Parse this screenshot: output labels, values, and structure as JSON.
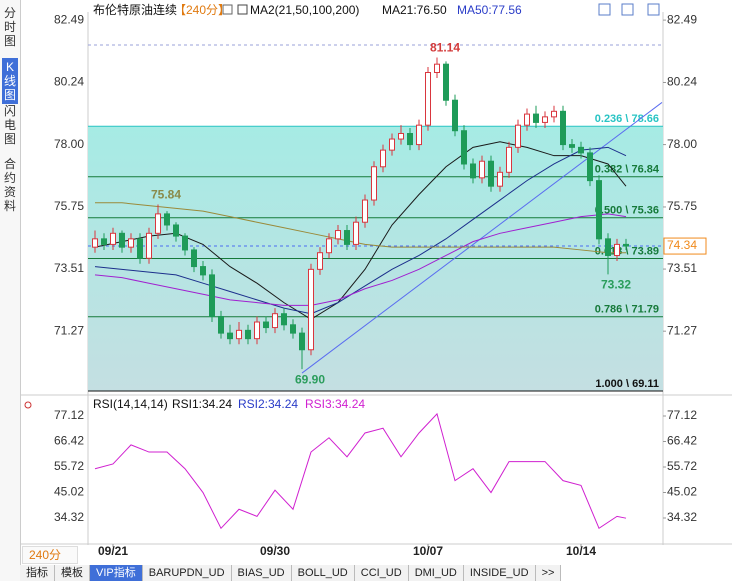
{
  "ui": {
    "sidebar_tabs": [
      "分时图",
      "K线图",
      "闪电图",
      "合约资料"
    ],
    "period_selector": "240分",
    "bottom_tabs": [
      "指标",
      "模板",
      "VIP指标",
      "BARUPDN_UD",
      "BIAS_UD",
      "BOLL_UD",
      "CCI_UD",
      "DMI_UD",
      "INSIDE_UD",
      ">>"
    ],
    "header": {
      "title": "布伦特原油连续",
      "period": "【240分】",
      "indicator": "MA2(21,50,100,200)",
      "ma21": "MA21:76.50",
      "ma50": "MA50:77.56"
    },
    "rsi_header": {
      "name": "RSI(14,14,14)",
      "rsi1": "RSI1:34.24",
      "rsi2": "RSI2:34.24",
      "rsi3": "RSI3:34.24"
    }
  },
  "chart_data": [
    {
      "type": "candlestick",
      "categories": [
        null,
        null,
        "09/21",
        null,
        null,
        null,
        null,
        null,
        null,
        null,
        null,
        null,
        null,
        null,
        null,
        null,
        null,
        null,
        null,
        null,
        "09/30",
        null,
        null,
        null,
        null,
        null,
        null,
        null,
        null,
        null,
        null,
        null,
        null,
        null,
        null,
        null,
        null,
        "10/07",
        null,
        null,
        null,
        null,
        null,
        null,
        null,
        null,
        null,
        null,
        null,
        null,
        null,
        null,
        null,
        null,
        "10/14",
        null,
        null,
        null,
        null,
        null
      ],
      "open": [
        74.3,
        74.6,
        74.4,
        74.8,
        74.3,
        74.6,
        73.9,
        74.8,
        75.5,
        75.1,
        74.7,
        74.2,
        73.6,
        73.3,
        71.8,
        71.2,
        71.0,
        71.3,
        71.0,
        71.6,
        71.4,
        71.9,
        71.5,
        71.2,
        70.6,
        73.5,
        74.1,
        74.6,
        74.9,
        74.4,
        75.2,
        76.0,
        77.2,
        77.8,
        78.2,
        78.4,
        78.0,
        78.7,
        80.6,
        80.9,
        79.6,
        78.5,
        77.3,
        76.8,
        77.4,
        76.5,
        77.0,
        77.9,
        78.7,
        79.1,
        78.8,
        79.0,
        79.2,
        78.0,
        77.9,
        77.7,
        76.7,
        74.6,
        74.0,
        74.4
      ],
      "high": [
        74.9,
        74.8,
        75.0,
        74.9,
        74.8,
        74.8,
        75.0,
        75.84,
        75.6,
        75.2,
        74.8,
        74.3,
        73.8,
        73.5,
        72.0,
        71.5,
        71.6,
        71.5,
        71.8,
        71.8,
        72.1,
        72.1,
        71.7,
        71.4,
        73.7,
        74.3,
        74.8,
        75.1,
        75.1,
        75.4,
        76.2,
        77.4,
        78.0,
        78.4,
        78.7,
        78.6,
        78.9,
        80.8,
        81.14,
        81.0,
        79.8,
        78.7,
        77.5,
        77.6,
        77.6,
        77.2,
        78.1,
        78.9,
        79.3,
        79.4,
        79.2,
        79.4,
        79.4,
        78.2,
        78.1,
        77.9,
        76.9,
        74.8,
        74.6,
        74.6
      ],
      "low": [
        74.1,
        74.2,
        74.2,
        74.1,
        74.1,
        73.7,
        73.7,
        74.6,
        74.9,
        74.5,
        74.0,
        73.4,
        73.1,
        71.6,
        71.0,
        70.8,
        70.8,
        70.8,
        70.8,
        71.2,
        71.2,
        71.3,
        71.0,
        69.9,
        70.4,
        73.3,
        73.9,
        74.4,
        74.2,
        74.2,
        75.0,
        75.8,
        77.0,
        77.6,
        78.0,
        77.8,
        77.8,
        78.5,
        80.4,
        79.4,
        78.3,
        77.1,
        76.6,
        76.6,
        76.3,
        76.3,
        76.8,
        77.7,
        78.5,
        78.6,
        78.6,
        78.8,
        77.8,
        77.7,
        77.5,
        76.5,
        74.4,
        73.32,
        73.8,
        74.2
      ],
      "close": [
        74.6,
        74.4,
        74.8,
        74.3,
        74.6,
        73.9,
        74.8,
        75.5,
        75.1,
        74.7,
        74.2,
        73.6,
        73.3,
        71.8,
        71.2,
        71.0,
        71.3,
        71.0,
        71.6,
        71.4,
        71.9,
        71.5,
        71.2,
        70.6,
        73.5,
        74.1,
        74.6,
        74.9,
        74.4,
        75.2,
        76.0,
        77.2,
        77.8,
        78.2,
        78.4,
        78.0,
        78.7,
        80.6,
        80.9,
        79.6,
        78.5,
        77.3,
        76.8,
        77.4,
        76.5,
        77.0,
        77.9,
        78.7,
        79.1,
        78.8,
        79.0,
        79.2,
        78.0,
        77.9,
        77.7,
        76.7,
        74.6,
        74.0,
        74.4,
        74.34
      ],
      "up_color": "#d9363e",
      "down_color": "#1e9b58",
      "ylim": [
        69.04,
        82.71
      ],
      "yticks": [
        82.49,
        80.24,
        {
          "value": 78,
          "label": "78.00"
        },
        75.75,
        73.51,
        71.27
      ],
      "ma_lines": [
        {
          "color": "#1a1a1a",
          "x": [
            0,
            3,
            6,
            9,
            12,
            15,
            18,
            21,
            24,
            27,
            30,
            33,
            36,
            39,
            42,
            45,
            48,
            51,
            54,
            57,
            59
          ],
          "values": [
            74.3,
            74.5,
            74.7,
            74.8,
            74.4,
            73.6,
            73.0,
            72.3,
            71.7,
            72.3,
            73.5,
            75.1,
            76.2,
            77.2,
            77.9,
            78.1,
            77.9,
            77.6,
            77.6,
            77.3,
            76.5
          ]
        },
        {
          "color": "#1c2f8c",
          "x": [
            0,
            3,
            6,
            9,
            12,
            15,
            18,
            21,
            24,
            27,
            30,
            33,
            36,
            39,
            42,
            45,
            48,
            51,
            54,
            57,
            59
          ],
          "values": [
            73.6,
            73.5,
            73.4,
            73.3,
            73.0,
            72.7,
            72.4,
            72.1,
            71.9,
            72.3,
            72.9,
            73.5,
            74.0,
            74.6,
            75.3,
            76.0,
            76.7,
            77.3,
            77.8,
            77.9,
            77.6
          ]
        },
        {
          "color": "#a020d0",
          "x": [
            0,
            3,
            6,
            9,
            12,
            15,
            18,
            21,
            24,
            27,
            30,
            33,
            36,
            39,
            42,
            45,
            48,
            51,
            54,
            57,
            59
          ],
          "values": [
            73.3,
            73.2,
            73.0,
            72.8,
            72.6,
            72.4,
            72.3,
            72.2,
            72.2,
            72.4,
            72.8,
            73.1,
            73.5,
            74.0,
            74.5,
            74.8,
            75.0,
            75.2,
            75.4,
            75.5,
            75.4
          ]
        },
        {
          "color": "#9a8a3a",
          "x": [
            0,
            3,
            6,
            9,
            12,
            15,
            18,
            21,
            24,
            27,
            30,
            33,
            36,
            39,
            42,
            45,
            48,
            51,
            54,
            57,
            59
          ],
          "values": [
            75.9,
            75.9,
            75.8,
            75.7,
            75.6,
            75.4,
            75.2,
            75.0,
            74.8,
            74.6,
            74.4,
            74.3,
            74.3,
            74.3,
            74.3,
            74.3,
            74.3,
            74.3,
            74.2,
            74.1,
            74.1
          ]
        }
      ],
      "fib_levels": [
        {
          "value": 78.66,
          "label": "0.236 \\ 78.66",
          "color": "#28c4c4"
        },
        {
          "value": 76.84,
          "label": "0.382 \\ 76.84",
          "color": "#167a3a"
        },
        {
          "value": 75.36,
          "label": "0.500 \\ 75.36",
          "color": "#167a3a"
        },
        {
          "value": 73.89,
          "label": "0.618 \\ 73.89",
          "color": "#167a3a"
        },
        {
          "value": 71.79,
          "label": "0.786 \\ 71.79",
          "color": "#167a3a"
        },
        {
          "value": 69.11,
          "label": "1.000 \\ 69.11",
          "color": "#111111"
        }
      ],
      "trendline": {
        "color": "#5a6cf0",
        "x": [
          23,
          63
        ],
        "values": [
          69.76,
          79.52
        ]
      },
      "reference_lines": [
        {
          "value": 81.59,
          "color": "#9aa0d8"
        },
        {
          "value": 74.34,
          "color": "#4a6cf0"
        }
      ],
      "current_price": {
        "value": 74.34,
        "color": "#f08a1c"
      },
      "annotations": [
        {
          "index": 38,
          "value": 81.14,
          "label": "81.14",
          "color": "#d33b3b",
          "position": "above"
        },
        {
          "index": 7,
          "value": 75.84,
          "label": "75.84",
          "color": "#8a8a4a",
          "position": "above"
        },
        {
          "index": 23,
          "value": 69.9,
          "label": "69.90",
          "color": "#2a9d5c",
          "position": "below"
        },
        {
          "index": 57,
          "value": 73.32,
          "label": "73.32",
          "color": "#2a9d5c",
          "position": "below"
        }
      ]
    },
    {
      "type": "line",
      "ylim": [
        23.83,
        81.74
      ],
      "yticks": [
        77.12,
        66.42,
        55.72,
        45.02,
        34.32
      ],
      "series": [
        {
          "color": "#d020d0",
          "x": [
            0,
            2,
            4,
            6,
            8,
            10,
            12,
            14,
            16,
            18,
            20,
            22,
            24,
            26,
            28,
            30,
            32,
            34,
            36,
            38,
            40,
            42,
            44,
            46,
            48,
            50,
            52,
            54,
            56,
            58,
            59
          ],
          "values": [
            55,
            57,
            65,
            62,
            62,
            55,
            45,
            30,
            38,
            35,
            46,
            38,
            62,
            68,
            60,
            70,
            72,
            60,
            70,
            78,
            50,
            55,
            45,
            58,
            58,
            58,
            50,
            48,
            30,
            35,
            34.24
          ]
        }
      ]
    }
  ]
}
